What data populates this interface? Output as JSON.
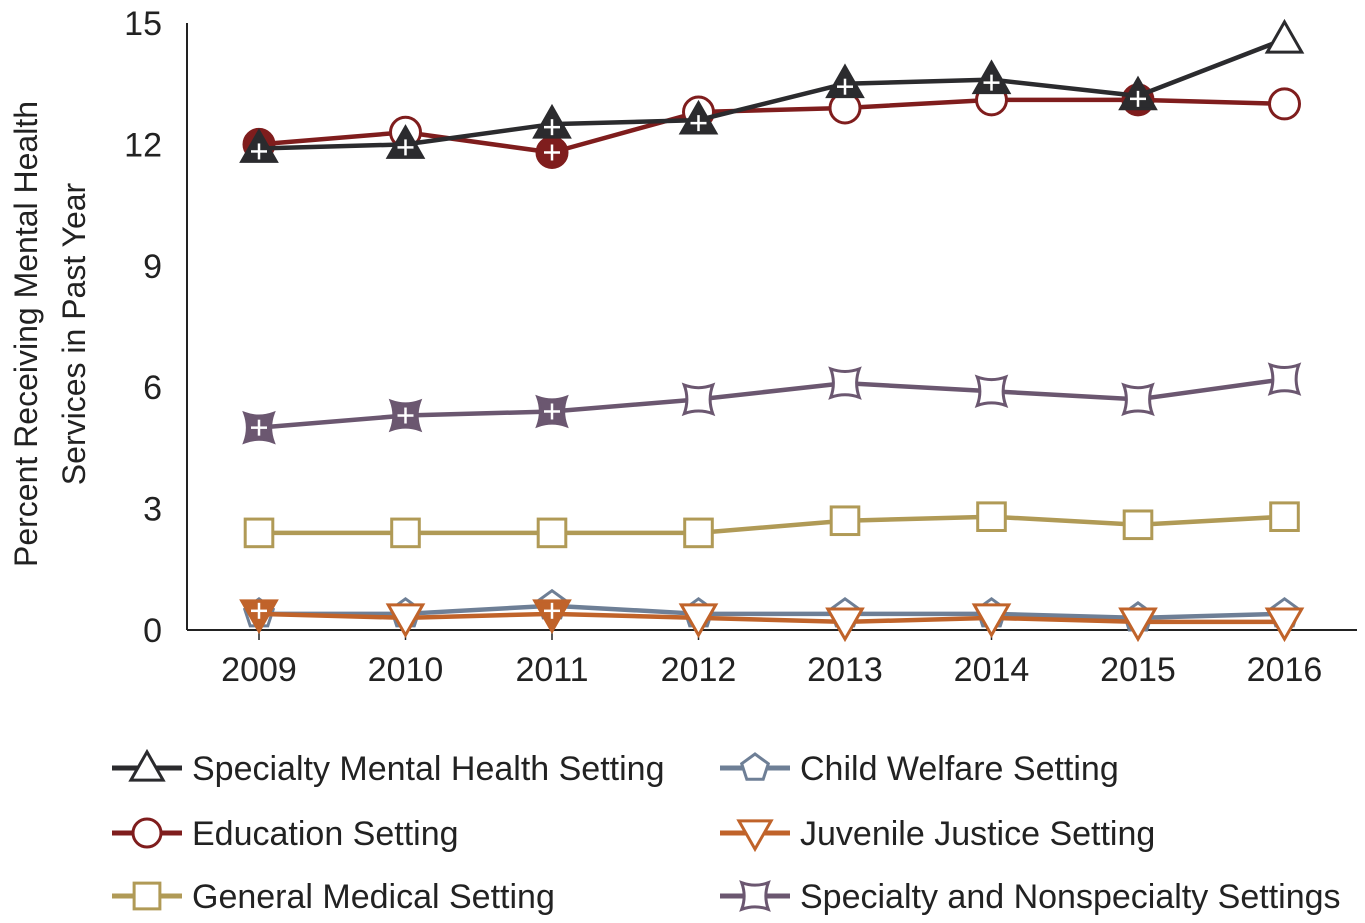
{
  "chart_data": {
    "type": "line",
    "title": "",
    "xlabel": "",
    "ylabel_lines": [
      "Percent Receiving Mental Health",
      "Services in Past Year"
    ],
    "categories": [
      "2009",
      "2010",
      "2011",
      "2012",
      "2013",
      "2014",
      "2015",
      "2016"
    ],
    "ylim": [
      0,
      15
    ],
    "yticks": [
      "0",
      "3",
      "6",
      "9",
      "12",
      "15"
    ],
    "grid": false,
    "legend_position": "bottom",
    "series": [
      {
        "name": "Specialty Mental Health Setting",
        "marker": "triangle-up",
        "color": "#2b2b2e",
        "values": [
          11.9,
          12.0,
          12.5,
          12.6,
          13.5,
          13.6,
          13.2,
          14.6
        ],
        "significant": [
          true,
          true,
          true,
          true,
          true,
          true,
          true,
          false
        ]
      },
      {
        "name": "Education Setting",
        "marker": "circle",
        "color": "#7f1d1d",
        "values": [
          12.0,
          12.3,
          11.8,
          12.8,
          12.9,
          13.1,
          13.1,
          13.0
        ],
        "significant": [
          true,
          false,
          true,
          false,
          false,
          false,
          true,
          false
        ]
      },
      {
        "name": "General Medical Setting",
        "marker": "square",
        "color": "#b09a56",
        "values": [
          2.4,
          2.4,
          2.4,
          2.4,
          2.7,
          2.8,
          2.6,
          2.8
        ],
        "significant": [
          false,
          false,
          false,
          false,
          false,
          false,
          false,
          false
        ]
      },
      {
        "name": "Child Welfare Setting",
        "marker": "pentagon",
        "color": "#6e7f96",
        "values": [
          0.4,
          0.4,
          0.6,
          0.4,
          0.4,
          0.4,
          0.3,
          0.4
        ],
        "significant": [
          false,
          false,
          false,
          false,
          false,
          false,
          false,
          false
        ]
      },
      {
        "name": "Juvenile Justice Setting",
        "marker": "triangle-down",
        "color": "#c0632a",
        "values": [
          0.4,
          0.3,
          0.4,
          0.3,
          0.2,
          0.3,
          0.2,
          0.2
        ],
        "significant": [
          true,
          false,
          true,
          false,
          false,
          false,
          false,
          false
        ]
      },
      {
        "name": "Specialty and Nonspecialty Settings",
        "marker": "concave-square",
        "color": "#6b5770",
        "values": [
          5.0,
          5.3,
          5.4,
          5.7,
          6.1,
          5.9,
          5.7,
          6.2
        ],
        "significant": [
          true,
          true,
          true,
          false,
          false,
          false,
          false,
          false
        ]
      }
    ]
  },
  "legend": {
    "items": [
      {
        "label": "Specialty Mental Health Setting",
        "marker": "triangle-up",
        "color": "#2b2b2e"
      },
      {
        "label": "Child Welfare Setting",
        "marker": "pentagon",
        "color": "#6e7f96"
      },
      {
        "label": "Education Setting",
        "marker": "circle",
        "color": "#7f1d1d"
      },
      {
        "label": "Juvenile Justice Setting",
        "marker": "triangle-down",
        "color": "#c0632a"
      },
      {
        "label": "General Medical Setting",
        "marker": "square",
        "color": "#b09a56"
      },
      {
        "label": "Specialty and Nonspecialty Settings",
        "marker": "concave-square",
        "color": "#6b5770"
      }
    ]
  }
}
